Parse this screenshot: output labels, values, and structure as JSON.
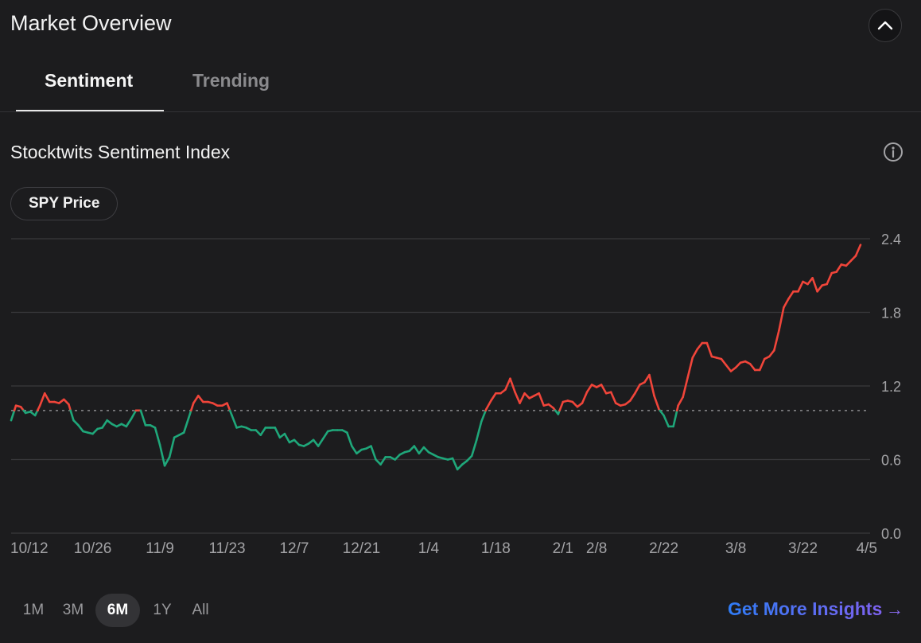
{
  "header": {
    "title": "Market Overview"
  },
  "tabs": [
    {
      "label": "Sentiment",
      "active": true
    },
    {
      "label": "Trending",
      "active": false
    }
  ],
  "section": {
    "title": "Stocktwits Sentiment Index"
  },
  "chip": {
    "label": "SPY Price"
  },
  "range_selector": {
    "options": [
      "1M",
      "3M",
      "6M",
      "1Y",
      "All"
    ],
    "selected": "6M"
  },
  "insights": {
    "label": "Get More Insights",
    "arrow": "→"
  },
  "colors": {
    "above": "#f0453a",
    "below": "#1fa77a",
    "grid": "#38383b",
    "baseline": "#8a8a8d",
    "text": "#a3a3a6",
    "background": "#1c1c1e"
  },
  "chart_data": {
    "type": "line",
    "y_axis_side": "right",
    "ylim": [
      0,
      2.4
    ],
    "yticks": [
      0.0,
      0.6,
      1.2,
      1.8,
      2.4
    ],
    "ytick_labels": [
      "0.0",
      "0.6",
      "1.2",
      "1.8",
      "2.4"
    ],
    "baseline": 1.0,
    "grid": true,
    "x_start": "2023-10-09",
    "x_end": "2024-04-05",
    "xtick_labels": [
      {
        "date": "2023-10-12",
        "label": "10/12"
      },
      {
        "date": "2023-10-26",
        "label": "10/26"
      },
      {
        "date": "2023-11-09",
        "label": "11/9"
      },
      {
        "date": "2023-11-23",
        "label": "11/23"
      },
      {
        "date": "2023-12-07",
        "label": "12/7"
      },
      {
        "date": "2023-12-21",
        "label": "12/21"
      },
      {
        "date": "2024-01-04",
        "label": "1/4"
      },
      {
        "date": "2024-01-18",
        "label": "1/18"
      },
      {
        "date": "2024-02-01",
        "label": "2/1"
      },
      {
        "date": "2024-02-08",
        "label": "2/8"
      },
      {
        "date": "2024-02-22",
        "label": "2/22"
      },
      {
        "date": "2024-03-08",
        "label": "3/8"
      },
      {
        "date": "2024-03-22",
        "label": "3/22"
      },
      {
        "date": "2024-04-05",
        "label": "4/5"
      }
    ],
    "series": [
      {
        "points": [
          [
            "2023-10-09",
            0.92
          ],
          [
            "2023-10-10",
            1.04
          ],
          [
            "2023-10-11",
            1.03
          ],
          [
            "2023-10-12",
            0.98
          ],
          [
            "2023-10-13",
            0.99
          ],
          [
            "2023-10-14",
            0.96
          ],
          [
            "2023-10-15",
            1.04
          ],
          [
            "2023-10-16",
            1.14
          ],
          [
            "2023-10-17",
            1.07
          ],
          [
            "2023-10-18",
            1.07
          ],
          [
            "2023-10-19",
            1.06
          ],
          [
            "2023-10-20",
            1.09
          ],
          [
            "2023-10-21",
            1.05
          ],
          [
            "2023-10-22",
            0.92
          ],
          [
            "2023-10-23",
            0.88
          ],
          [
            "2023-10-24",
            0.83
          ],
          [
            "2023-10-25",
            0.82
          ],
          [
            "2023-10-26",
            0.81
          ],
          [
            "2023-10-27",
            0.85
          ],
          [
            "2023-10-28",
            0.86
          ],
          [
            "2023-10-29",
            0.92
          ],
          [
            "2023-10-30",
            0.89
          ],
          [
            "2023-10-31",
            0.87
          ],
          [
            "2023-11-01",
            0.89
          ],
          [
            "2023-11-02",
            0.87
          ],
          [
            "2023-11-03",
            0.93
          ],
          [
            "2023-11-04",
            1.0
          ],
          [
            "2023-11-05",
            1.0
          ],
          [
            "2023-11-06",
            0.88
          ],
          [
            "2023-11-07",
            0.88
          ],
          [
            "2023-11-08",
            0.86
          ],
          [
            "2023-11-09",
            0.72
          ],
          [
            "2023-11-10",
            0.55
          ],
          [
            "2023-11-11",
            0.62
          ],
          [
            "2023-11-12",
            0.78
          ],
          [
            "2023-11-13",
            0.8
          ],
          [
            "2023-11-14",
            0.82
          ],
          [
            "2023-11-15",
            0.94
          ],
          [
            "2023-11-16",
            1.06
          ],
          [
            "2023-11-17",
            1.12
          ],
          [
            "2023-11-18",
            1.07
          ],
          [
            "2023-11-19",
            1.07
          ],
          [
            "2023-11-20",
            1.06
          ],
          [
            "2023-11-21",
            1.04
          ],
          [
            "2023-11-22",
            1.04
          ],
          [
            "2023-11-23",
            1.06
          ],
          [
            "2023-11-24",
            0.96
          ],
          [
            "2023-11-25",
            0.86
          ],
          [
            "2023-11-26",
            0.87
          ],
          [
            "2023-11-27",
            0.86
          ],
          [
            "2023-11-28",
            0.84
          ],
          [
            "2023-11-29",
            0.84
          ],
          [
            "2023-11-30",
            0.8
          ],
          [
            "2023-12-01",
            0.86
          ],
          [
            "2023-12-02",
            0.86
          ],
          [
            "2023-12-03",
            0.86
          ],
          [
            "2023-12-04",
            0.78
          ],
          [
            "2023-12-05",
            0.81
          ],
          [
            "2023-12-06",
            0.74
          ],
          [
            "2023-12-07",
            0.76
          ],
          [
            "2023-12-08",
            0.72
          ],
          [
            "2023-12-09",
            0.71
          ],
          [
            "2023-12-10",
            0.73
          ],
          [
            "2023-12-11",
            0.76
          ],
          [
            "2023-12-12",
            0.71
          ],
          [
            "2023-12-13",
            0.77
          ],
          [
            "2023-12-14",
            0.83
          ],
          [
            "2023-12-15",
            0.84
          ],
          [
            "2023-12-16",
            0.84
          ],
          [
            "2023-12-17",
            0.84
          ],
          [
            "2023-12-18",
            0.82
          ],
          [
            "2023-12-19",
            0.71
          ],
          [
            "2023-12-20",
            0.65
          ],
          [
            "2023-12-21",
            0.68
          ],
          [
            "2023-12-22",
            0.69
          ],
          [
            "2023-12-23",
            0.71
          ],
          [
            "2023-12-24",
            0.6
          ],
          [
            "2023-12-25",
            0.56
          ],
          [
            "2023-12-26",
            0.62
          ],
          [
            "2023-12-27",
            0.62
          ],
          [
            "2023-12-28",
            0.6
          ],
          [
            "2023-12-29",
            0.64
          ],
          [
            "2023-12-30",
            0.66
          ],
          [
            "2023-12-31",
            0.67
          ],
          [
            "2024-01-01",
            0.71
          ],
          [
            "2024-01-02",
            0.65
          ],
          [
            "2024-01-03",
            0.7
          ],
          [
            "2024-01-04",
            0.66
          ],
          [
            "2024-01-05",
            0.64
          ],
          [
            "2024-01-06",
            0.62
          ],
          [
            "2024-01-07",
            0.61
          ],
          [
            "2024-01-08",
            0.6
          ],
          [
            "2024-01-09",
            0.61
          ],
          [
            "2024-01-10",
            0.52
          ],
          [
            "2024-01-11",
            0.56
          ],
          [
            "2024-01-12",
            0.59
          ],
          [
            "2024-01-13",
            0.63
          ],
          [
            "2024-01-14",
            0.76
          ],
          [
            "2024-01-15",
            0.91
          ],
          [
            "2024-01-16",
            1.01
          ],
          [
            "2024-01-17",
            1.08
          ],
          [
            "2024-01-18",
            1.14
          ],
          [
            "2024-01-19",
            1.14
          ],
          [
            "2024-01-20",
            1.17
          ],
          [
            "2024-01-21",
            1.26
          ],
          [
            "2024-01-22",
            1.15
          ],
          [
            "2024-01-23",
            1.06
          ],
          [
            "2024-01-24",
            1.14
          ],
          [
            "2024-01-25",
            1.1
          ],
          [
            "2024-01-26",
            1.12
          ],
          [
            "2024-01-27",
            1.14
          ],
          [
            "2024-01-28",
            1.04
          ],
          [
            "2024-01-29",
            1.05
          ],
          [
            "2024-01-30",
            1.02
          ],
          [
            "2024-01-31",
            0.97
          ],
          [
            "2024-02-01",
            1.07
          ],
          [
            "2024-02-02",
            1.08
          ],
          [
            "2024-02-03",
            1.07
          ],
          [
            "2024-02-04",
            1.03
          ],
          [
            "2024-02-05",
            1.06
          ],
          [
            "2024-02-06",
            1.15
          ],
          [
            "2024-02-07",
            1.21
          ],
          [
            "2024-02-08",
            1.19
          ],
          [
            "2024-02-09",
            1.21
          ],
          [
            "2024-02-10",
            1.14
          ],
          [
            "2024-02-11",
            1.15
          ],
          [
            "2024-02-12",
            1.06
          ],
          [
            "2024-02-13",
            1.04
          ],
          [
            "2024-02-14",
            1.05
          ],
          [
            "2024-02-15",
            1.08
          ],
          [
            "2024-02-16",
            1.14
          ],
          [
            "2024-02-17",
            1.21
          ],
          [
            "2024-02-18",
            1.23
          ],
          [
            "2024-02-19",
            1.29
          ],
          [
            "2024-02-20",
            1.12
          ],
          [
            "2024-02-21",
            1.01
          ],
          [
            "2024-02-22",
            0.96
          ],
          [
            "2024-02-23",
            0.87
          ],
          [
            "2024-02-24",
            0.87
          ],
          [
            "2024-02-25",
            1.04
          ],
          [
            "2024-02-26",
            1.11
          ],
          [
            "2024-02-27",
            1.27
          ],
          [
            "2024-02-28",
            1.43
          ],
          [
            "2024-02-29",
            1.5
          ],
          [
            "2024-03-01",
            1.55
          ],
          [
            "2024-03-02",
            1.55
          ],
          [
            "2024-03-03",
            1.44
          ],
          [
            "2024-03-04",
            1.43
          ],
          [
            "2024-03-05",
            1.42
          ],
          [
            "2024-03-06",
            1.37
          ],
          [
            "2024-03-07",
            1.32
          ],
          [
            "2024-03-08",
            1.35
          ],
          [
            "2024-03-09",
            1.39
          ],
          [
            "2024-03-10",
            1.4
          ],
          [
            "2024-03-11",
            1.38
          ],
          [
            "2024-03-12",
            1.33
          ],
          [
            "2024-03-13",
            1.33
          ],
          [
            "2024-03-14",
            1.42
          ],
          [
            "2024-03-15",
            1.44
          ],
          [
            "2024-03-16",
            1.49
          ],
          [
            "2024-03-17",
            1.65
          ],
          [
            "2024-03-18",
            1.84
          ],
          [
            "2024-03-19",
            1.91
          ],
          [
            "2024-03-20",
            1.97
          ],
          [
            "2024-03-21",
            1.97
          ],
          [
            "2024-03-22",
            2.05
          ],
          [
            "2024-03-23",
            2.03
          ],
          [
            "2024-03-24",
            2.08
          ],
          [
            "2024-03-25",
            1.97
          ],
          [
            "2024-03-26",
            2.02
          ],
          [
            "2024-03-27",
            2.03
          ],
          [
            "2024-03-28",
            2.12
          ],
          [
            "2024-03-29",
            2.13
          ],
          [
            "2024-03-30",
            2.19
          ],
          [
            "2024-03-31",
            2.18
          ],
          [
            "2024-04-01",
            2.22
          ],
          [
            "2024-04-02",
            2.26
          ],
          [
            "2024-04-03",
            2.35
          ]
        ]
      }
    ]
  }
}
